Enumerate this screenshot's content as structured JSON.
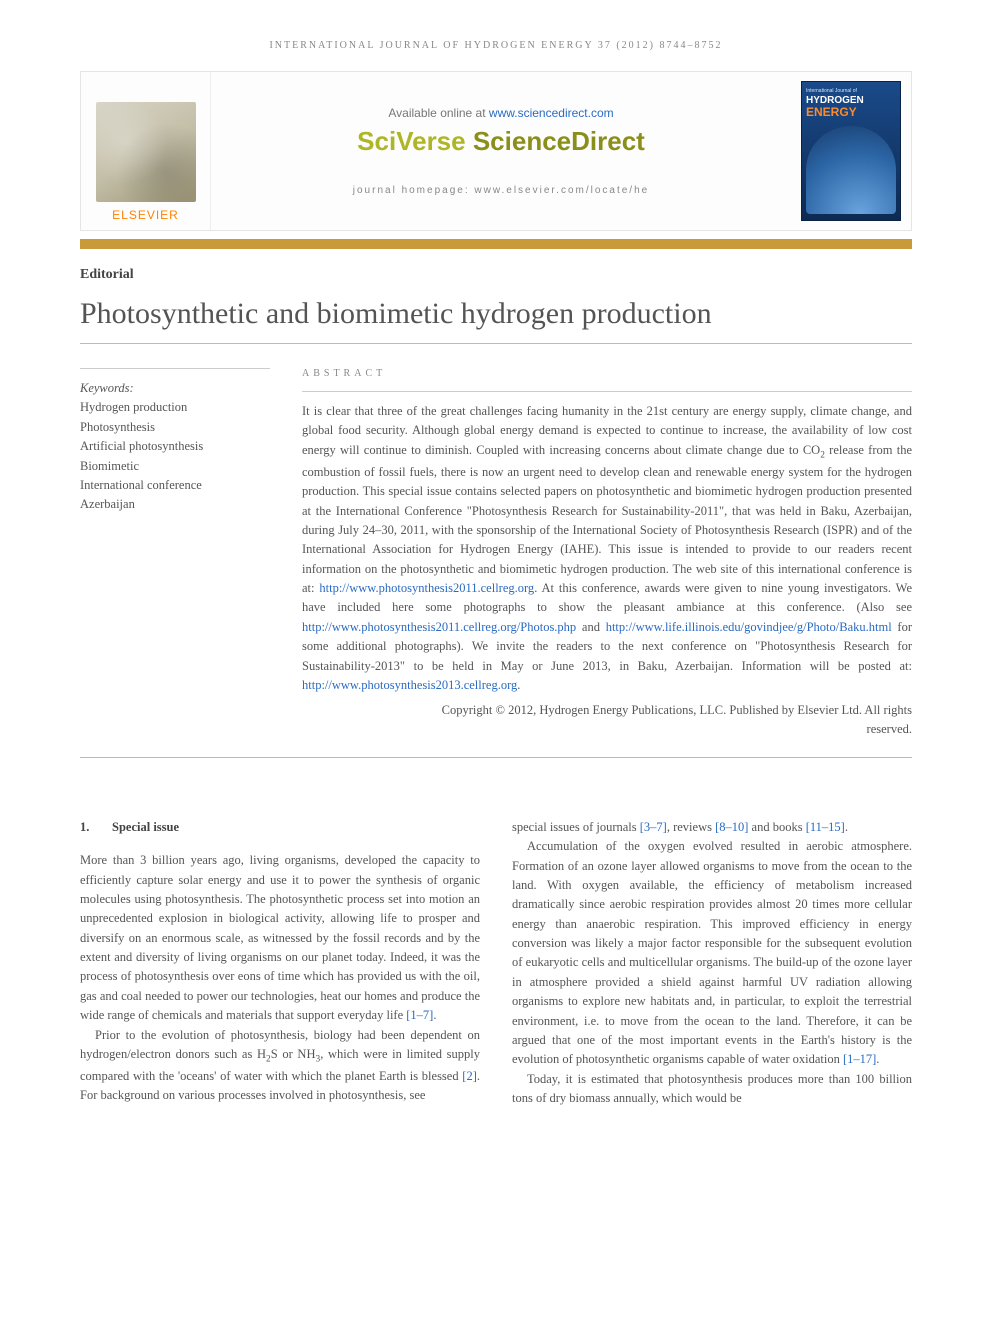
{
  "running_header": "INTERNATIONAL JOURNAL OF HYDROGEN ENERGY 37 (2012) 8744–8752",
  "masthead": {
    "publisher": "ELSEVIER",
    "available_prefix": "Available online at ",
    "available_link": "www.sciencedirect.com",
    "brand1": "SciVerse",
    "brand2": " ScienceDirect",
    "homepage": "journal homepage: www.elsevier.com/locate/he",
    "cover_small": "International Journal of",
    "cover_h": "HYDROGEN",
    "cover_e": "ENERGY"
  },
  "article": {
    "type": "Editorial",
    "title": "Photosynthetic and biomimetic hydrogen production"
  },
  "keywords": {
    "head": "Keywords:",
    "items": [
      "Hydrogen production",
      "Photosynthesis",
      "Artificial photosynthesis",
      "Biomimetic",
      "International conference",
      "Azerbaijan"
    ]
  },
  "abstract": {
    "head": "ABSTRACT",
    "p1a": "It is clear that three of the great challenges facing humanity in the 21st century are energy supply, climate change, and global food security. Although global energy demand is expected to continue to increase, the availability of low cost energy will continue to diminish. Coupled with increasing concerns about climate change due to CO",
    "p1b": " release from the combustion of fossil fuels, there is now an urgent need to develop clean and renewable energy system for the hydrogen production. This special issue contains selected papers on photosynthetic and biomimetic hydrogen production presented at the International Conference \"Photosynthesis Research for Sustainability-2011\", that was held in Baku, Azerbaijan, during July 24–30, 2011, with the sponsorship of the International Society of Photosynthesis Research (ISPR) and of the International Association for Hydrogen Energy (IAHE). This issue is intended to provide to our readers recent information on the photosynthetic and biomimetic hydrogen production. The web site of this international conference is at: ",
    "link1": "http://www.photosynthesis2011.cellreg.org",
    "p1c": ". At this conference, awards were given to nine young investigators. We have included here some photographs to show the pleasant ambiance at this conference. (Also see ",
    "link2": "http://www.photosynthesis2011.cellreg.org/Photos.php",
    "p1d": " and ",
    "link3": "http://www.life.illinois.edu/govindjee/g/Photo/Baku.html",
    "p1e": " for some additional photographs). We invite the readers to the next conference on \"Photosynthesis Research for Sustainability-2013\" to be held in May or June 2013, in Baku, Azerbaijan. Information will be posted at: ",
    "link4": "http://www.photosynthesis2013.cellreg.org",
    "p1f": ".",
    "copyright1": "Copyright © 2012, Hydrogen Energy Publications, LLC. Published by Elsevier Ltd. All rights",
    "copyright2": "reserved."
  },
  "body": {
    "h1_num": "1.",
    "h1_txt": "Special issue",
    "left_p1a": "More than 3 billion years ago, living organisms, developed the capacity to efficiently capture solar energy and use it to power the synthesis of organic molecules using photosynthesis. The photosynthetic process set into motion an unprecedented explosion in biological activity, allowing life to prosper and diversify on an enormous scale, as witnessed by the fossil records and by the extent and diversity of living organisms on our planet today. Indeed, it was the process of photosynthesis over eons of time which has provided us with the oil, gas and coal needed to power our technologies, heat our homes and produce the wide range of chemicals and materials that support everyday life ",
    "ref_1_7": "[1–7]",
    "left_p1b": ".",
    "left_p2a": "Prior to the evolution of photosynthesis, biology had been dependent on hydrogen/electron donors such as H",
    "left_p2b": "S or NH",
    "left_p2c": ", which were in limited supply compared with the 'oceans' of water with which the planet Earth is blessed ",
    "ref_2": "[2]",
    "left_p2d": ". For background on various processes involved in photosynthesis, see ",
    "right_p1a": "special issues of journals ",
    "ref_3_7": "[3–7]",
    "right_p1b": ", reviews ",
    "ref_8_10": "[8–10]",
    "right_p1c": " and books ",
    "ref_11_15": "[11–15]",
    "right_p1d": ".",
    "right_p2a": "Accumulation of the oxygen evolved resulted in aerobic atmosphere. Formation of an ozone layer allowed organisms to move from the ocean to the land. With oxygen available, the efficiency of metabolism increased dramatically since aerobic respiration provides almost 20 times more cellular energy than anaerobic respiration. This improved efficiency in energy conversion was likely a major factor responsible for the subsequent evolution of eukaryotic cells and multicellular organisms. The build-up of the ozone layer in atmosphere provided a shield against harmful UV radiation allowing organisms to explore new habitats and, in particular, to exploit the terrestrial environment, i.e. to move from the ocean to the land. Therefore, it can be argued that one of the most important events in the Earth's history is the evolution of photosynthetic organisms capable of water oxidation ",
    "ref_1_17": "[1–17]",
    "right_p2b": ".",
    "right_p3": "Today, it is estimated that photosynthesis produces more than 100 billion tons of dry biomass annually, which would be"
  }
}
